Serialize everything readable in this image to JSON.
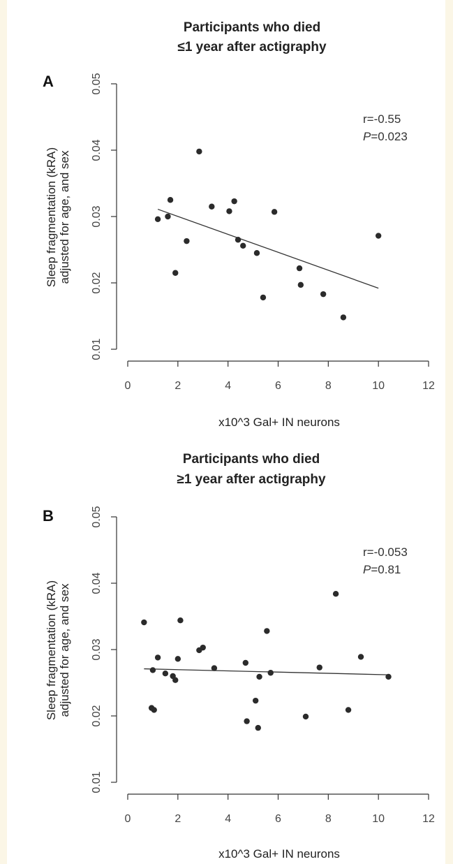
{
  "chart_data": [
    {
      "type": "scatter",
      "panel": "A",
      "title": [
        "Participants who died",
        "≤1 year after actigraphy"
      ],
      "xlabel": "x10^3 Gal+ IN neurons",
      "ylabel": [
        "Sleep fragmentation (kRA)",
        "adjusted for age, and sex"
      ],
      "xlim": [
        0,
        12
      ],
      "ylim": [
        0.01,
        0.05
      ],
      "x_ticks": [
        "0",
        "2",
        "4",
        "6",
        "8",
        "10",
        "12"
      ],
      "y_ticks": [
        "0.01",
        "0.02",
        "0.03",
        "0.04",
        "0.05"
      ],
      "stats": {
        "r": "r=-0.55",
        "p_symbol": "P",
        "p_value": "=0.023"
      },
      "fit_line": {
        "x": [
          1.2,
          10.0
        ],
        "y": [
          0.0311,
          0.0192
        ]
      },
      "points": [
        {
          "x": 1.2,
          "y": 0.0296
        },
        {
          "x": 1.6,
          "y": 0.03
        },
        {
          "x": 1.7,
          "y": 0.0325
        },
        {
          "x": 1.9,
          "y": 0.0215
        },
        {
          "x": 2.35,
          "y": 0.0263
        },
        {
          "x": 2.85,
          "y": 0.0398
        },
        {
          "x": 3.35,
          "y": 0.0315
        },
        {
          "x": 4.05,
          "y": 0.0308
        },
        {
          "x": 4.25,
          "y": 0.0323
        },
        {
          "x": 4.4,
          "y": 0.0265
        },
        {
          "x": 4.6,
          "y": 0.0256
        },
        {
          "x": 5.15,
          "y": 0.0245
        },
        {
          "x": 5.4,
          "y": 0.0178
        },
        {
          "x": 5.85,
          "y": 0.0307
        },
        {
          "x": 6.85,
          "y": 0.0222
        },
        {
          "x": 6.9,
          "y": 0.0197
        },
        {
          "x": 7.8,
          "y": 0.0183
        },
        {
          "x": 8.6,
          "y": 0.0148
        },
        {
          "x": 10.0,
          "y": 0.0271
        }
      ]
    },
    {
      "type": "scatter",
      "panel": "B",
      "title": [
        "Participants who died",
        "≥1 year after actigraphy"
      ],
      "xlabel": "x10^3 Gal+ IN neurons",
      "ylabel": [
        "Sleep fragmentation (kRA)",
        "adjusted for age, and sex"
      ],
      "xlim": [
        0,
        12
      ],
      "ylim": [
        0.01,
        0.05
      ],
      "x_ticks": [
        "0",
        "2",
        "4",
        "6",
        "8",
        "10",
        "12"
      ],
      "y_ticks": [
        "0.01",
        "0.02",
        "0.03",
        "0.04",
        "0.05"
      ],
      "stats": {
        "r": "r=-0.053",
        "p_symbol": "P",
        "p_value": "=0.81"
      },
      "fit_line": {
        "x": [
          0.65,
          10.4
        ],
        "y": [
          0.0271,
          0.0262
        ]
      },
      "points": [
        {
          "x": 0.65,
          "y": 0.0341
        },
        {
          "x": 0.95,
          "y": 0.0212
        },
        {
          "x": 1.0,
          "y": 0.0269
        },
        {
          "x": 1.05,
          "y": 0.0209
        },
        {
          "x": 1.2,
          "y": 0.0288
        },
        {
          "x": 1.5,
          "y": 0.0264
        },
        {
          "x": 1.8,
          "y": 0.026
        },
        {
          "x": 1.9,
          "y": 0.0254
        },
        {
          "x": 2.0,
          "y": 0.0286
        },
        {
          "x": 2.1,
          "y": 0.0344
        },
        {
          "x": 2.85,
          "y": 0.0299
        },
        {
          "x": 3.0,
          "y": 0.0303
        },
        {
          "x": 3.45,
          "y": 0.0272
        },
        {
          "x": 4.7,
          "y": 0.028
        },
        {
          "x": 4.75,
          "y": 0.0192
        },
        {
          "x": 5.1,
          "y": 0.0223
        },
        {
          "x": 5.2,
          "y": 0.0182
        },
        {
          "x": 5.25,
          "y": 0.0259
        },
        {
          "x": 5.55,
          "y": 0.0328
        },
        {
          "x": 5.7,
          "y": 0.0265
        },
        {
          "x": 7.1,
          "y": 0.0199
        },
        {
          "x": 7.65,
          "y": 0.0273
        },
        {
          "x": 8.3,
          "y": 0.0384
        },
        {
          "x": 8.8,
          "y": 0.0209
        },
        {
          "x": 9.3,
          "y": 0.0289
        },
        {
          "x": 10.4,
          "y": 0.0259
        }
      ]
    }
  ]
}
